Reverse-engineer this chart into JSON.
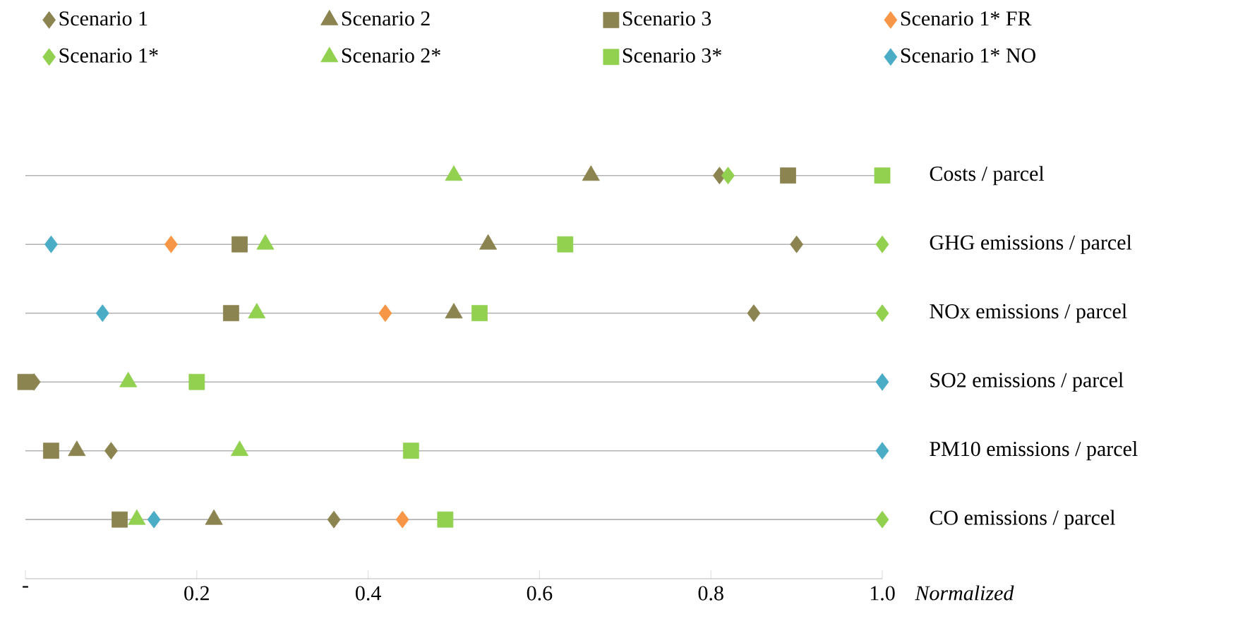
{
  "chart_data": {
    "type": "scatter",
    "orientation": "horizontal",
    "xlabel": "Normalized",
    "categories": [
      "Costs / parcel",
      "GHG emissions / parcel",
      "NOx emissions / parcel",
      "SO2 emissions / parcel",
      "PM10 emissions / parcel",
      "CO emissions / parcel"
    ],
    "xlim": [
      0,
      1
    ],
    "xticks": [
      {
        "value": 0,
        "label": "-"
      },
      0.2,
      0.4,
      0.6,
      0.8,
      {
        "value": 1,
        "label": "1.0"
      }
    ],
    "grid": "y",
    "legend": "top",
    "series": [
      {
        "name": "Scenario 1",
        "color": "#8c8450",
        "marker": "diamond",
        "values": [
          0.81,
          0.9,
          0.85,
          0.01,
          0.1,
          0.36
        ]
      },
      {
        "name": "Scenario 2",
        "color": "#8c8450",
        "marker": "triangle",
        "values": [
          0.66,
          0.54,
          0.5,
          null,
          0.06,
          0.22
        ]
      },
      {
        "name": "Scenario 3",
        "color": "#8c8450",
        "marker": "square",
        "values": [
          0.89,
          0.25,
          0.24,
          0.0,
          0.03,
          0.11
        ]
      },
      {
        "name": "Scenario 1* FR",
        "color": "#f79646",
        "marker": "diamond",
        "values": [
          null,
          0.17,
          0.42,
          null,
          null,
          0.44
        ]
      },
      {
        "name": "Scenario 1*",
        "color": "#92d050",
        "marker": "diamond",
        "values": [
          0.82,
          1.0,
          1.0,
          null,
          null,
          1.0
        ]
      },
      {
        "name": "Scenario 2*",
        "color": "#92d050",
        "marker": "triangle",
        "values": [
          0.5,
          0.28,
          0.27,
          0.12,
          0.25,
          0.13
        ]
      },
      {
        "name": "Scenario 3*",
        "color": "#92d050",
        "marker": "square",
        "values": [
          1.0,
          0.63,
          0.53,
          0.2,
          0.45,
          0.49
        ]
      },
      {
        "name": "Scenario 1* NO",
        "color": "#4bacc6",
        "marker": "diamond",
        "values": [
          null,
          0.03,
          0.09,
          1.0,
          1.0,
          0.15
        ]
      }
    ]
  }
}
